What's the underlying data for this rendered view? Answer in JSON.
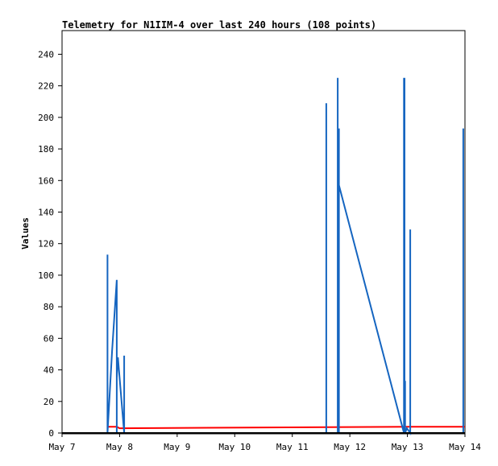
{
  "chart_data": {
    "type": "line",
    "title": "Telemetry for N1IIM-4 over last 240 hours (108 points)",
    "xlabel": "",
    "ylabel": "Values",
    "x_ticks": [
      "May 7",
      "May 8",
      "May 9",
      "May 10",
      "May 11",
      "May 12",
      "May 13",
      "May 14"
    ],
    "y_ticks": [
      0,
      20,
      40,
      60,
      80,
      100,
      120,
      140,
      160,
      180,
      200,
      220,
      240
    ],
    "xlim": [
      0,
      7
    ],
    "ylim": [
      0,
      255
    ],
    "grid": false,
    "colors": {
      "blue": "#1565c0",
      "red": "#ff0000",
      "black": "#000000"
    },
    "series": [
      {
        "color": "#ff0000",
        "x": [
          0.78,
          0.95,
          1.0,
          6.06,
          7.0
        ],
        "y": [
          4,
          4,
          3,
          4,
          4
        ]
      },
      {
        "color": "#1565c0",
        "x": [
          0.79,
          0.79,
          0.79,
          0.87,
          0.95,
          0.95,
          0.95,
          0.95,
          0.97,
          1.08,
          1.08,
          1.08,
          1.08
        ],
        "y": [
          0,
          113,
          0,
          52,
          97,
          0,
          48,
          35,
          48,
          0,
          49,
          0,
          0
        ]
      },
      {
        "color": "#1565c0",
        "x": [
          4.59,
          4.59,
          4.59,
          4.79,
          4.79,
          4.79,
          4.81,
          4.81,
          4.79,
          5.94,
          5.94,
          5.94,
          5.95,
          5.95,
          5.96,
          5.96,
          5.96,
          5.99,
          6.05,
          6.05,
          6.05,
          6.97,
          6.97,
          6.97
        ],
        "y": [
          0,
          209,
          0,
          0,
          225,
          160,
          193,
          0,
          160,
          0,
          225,
          0,
          225,
          0,
          33,
          0,
          0,
          3,
          0,
          129,
          0,
          0,
          193,
          0
        ]
      }
    ]
  }
}
